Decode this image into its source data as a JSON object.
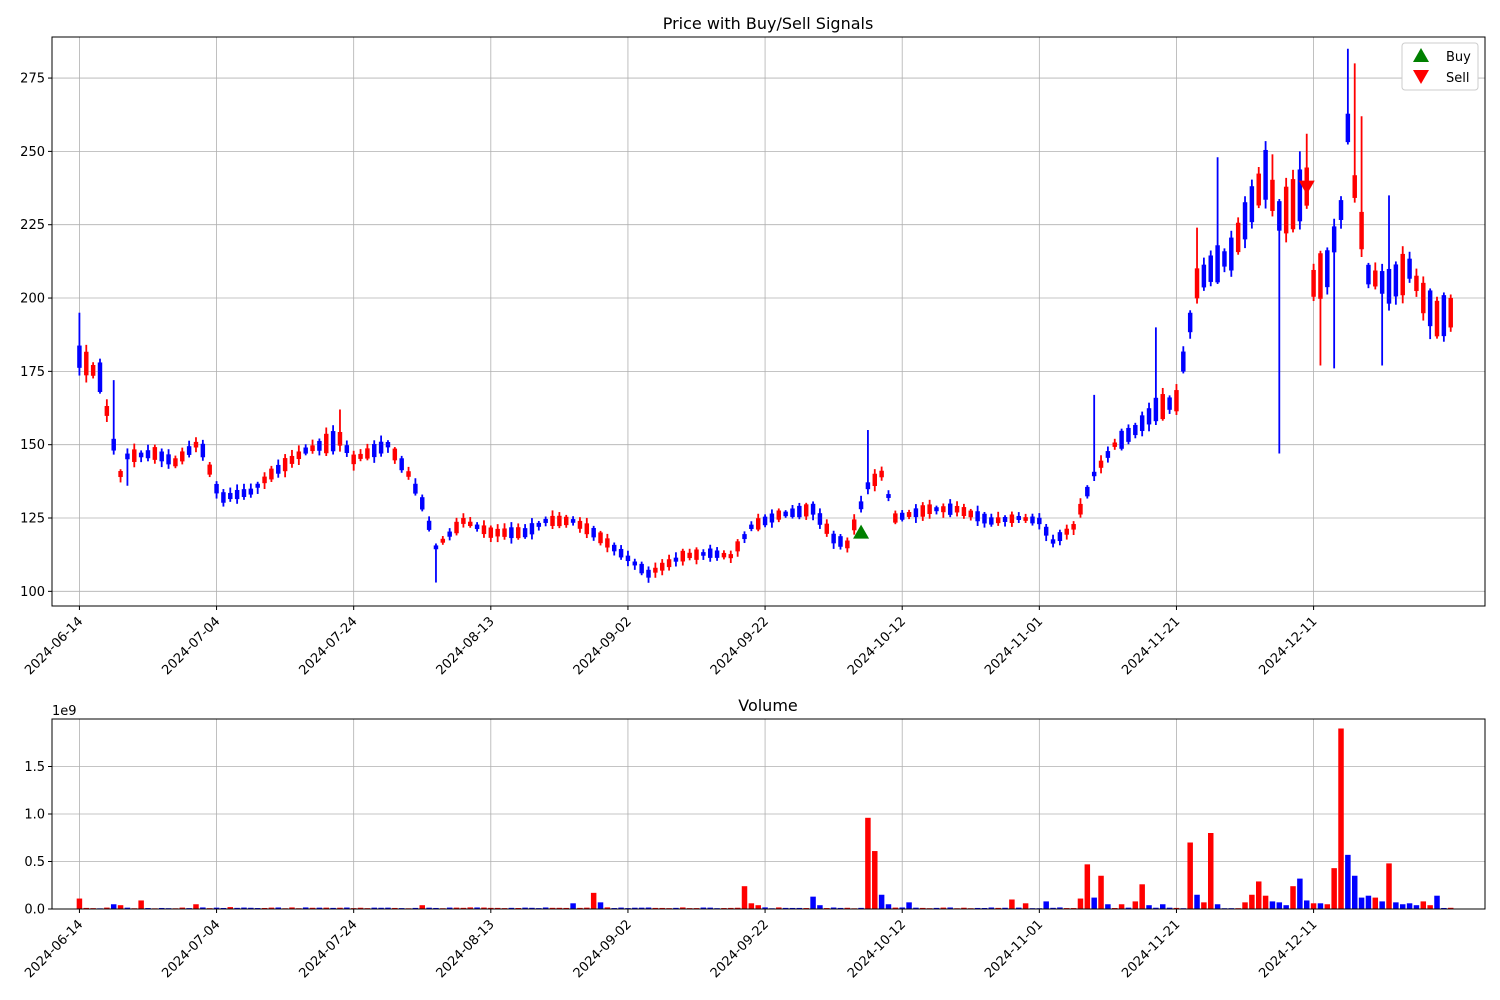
{
  "chart_data": [
    {
      "type": "candlestick",
      "title": "Price with Buy/Sell Signals",
      "xlabel": "",
      "ylabel": "",
      "x_range": [
        "2024-06-10",
        "2025-01-05"
      ],
      "ylim": [
        95,
        289
      ],
      "yticks": [
        100,
        125,
        150,
        175,
        200,
        225,
        250,
        275
      ],
      "xticks": [
        "2024-06-14",
        "2024-07-04",
        "2024-07-24",
        "2024-08-13",
        "2024-09-02",
        "2024-09-22",
        "2024-10-12",
        "2024-11-01",
        "2024-11-21",
        "2024-12-11"
      ],
      "grid": true,
      "colors": {
        "up": "#ff0000",
        "down": "#0000ff",
        "buy": "#008000",
        "sell": "#ff0000"
      },
      "legend": {
        "placement": "top-right",
        "entries": [
          {
            "label": "Buy",
            "marker": "triangle-up",
            "color": "#008000"
          },
          {
            "label": "Sell",
            "marker": "triangle-down",
            "color": "#ff0000"
          }
        ]
      },
      "signals": [
        {
          "type": "buy",
          "date": "2024-10-06",
          "price": 120
        },
        {
          "type": "sell",
          "date": "2024-12-10",
          "price": 238
        }
      ],
      "anchors": [
        [
          "2024-06-14",
          180
        ],
        [
          "2024-06-17",
          173
        ],
        [
          "2024-06-19",
          150
        ],
        [
          "2024-06-20",
          140
        ],
        [
          "2024-06-21",
          146
        ],
        [
          "2024-06-25",
          147
        ],
        [
          "2024-06-28",
          144
        ],
        [
          "2024-07-01",
          150
        ],
        [
          "2024-07-02",
          148
        ],
        [
          "2024-07-04",
          135
        ],
        [
          "2024-07-05",
          132
        ],
        [
          "2024-07-09",
          134
        ],
        [
          "2024-07-12",
          140
        ],
        [
          "2024-07-17",
          148
        ],
        [
          "2024-07-22",
          152
        ],
        [
          "2024-07-24",
          145
        ],
        [
          "2024-07-29",
          150
        ],
        [
          "2024-08-01",
          140
        ],
        [
          "2024-08-03",
          130
        ],
        [
          "2024-08-05",
          115
        ],
        [
          "2024-08-09",
          124
        ],
        [
          "2024-08-13",
          120
        ],
        [
          "2024-08-18",
          120
        ],
        [
          "2024-08-21",
          124
        ],
        [
          "2024-08-25",
          124
        ],
        [
          "2024-08-28",
          120
        ],
        [
          "2024-09-01",
          113
        ],
        [
          "2024-09-05",
          106
        ],
        [
          "2024-09-10",
          112
        ],
        [
          "2024-09-14",
          113
        ],
        [
          "2024-09-17",
          112
        ],
        [
          "2024-09-20",
          122
        ],
        [
          "2024-09-24",
          126
        ],
        [
          "2024-09-29",
          128
        ],
        [
          "2024-10-02",
          118
        ],
        [
          "2024-10-04",
          116
        ],
        [
          "2024-10-07",
          136
        ],
        [
          "2024-10-09",
          140
        ],
        [
          "2024-10-11",
          125
        ],
        [
          "2024-10-16",
          128
        ],
        [
          "2024-10-20",
          128
        ],
        [
          "2024-10-25",
          124
        ],
        [
          "2024-10-29",
          125
        ],
        [
          "2024-11-01",
          124
        ],
        [
          "2024-11-03",
          117
        ],
        [
          "2024-11-06",
          122
        ],
        [
          "2024-11-09",
          140
        ],
        [
          "2024-11-12",
          150
        ],
        [
          "2024-11-15",
          155
        ],
        [
          "2024-11-18",
          162
        ],
        [
          "2024-11-21",
          165
        ],
        [
          "2024-11-24",
          205
        ],
        [
          "2024-11-26",
          210
        ],
        [
          "2024-11-29",
          215
        ],
        [
          "2024-12-02",
          232
        ],
        [
          "2024-12-04",
          242
        ],
        [
          "2024-12-06",
          228
        ],
        [
          "2024-12-08",
          232
        ],
        [
          "2024-12-10",
          238
        ],
        [
          "2024-12-11",
          205
        ],
        [
          "2024-12-13",
          210
        ],
        [
          "2024-12-15",
          230
        ],
        [
          "2024-12-16",
          258
        ],
        [
          "2024-12-17",
          238
        ],
        [
          "2024-12-19",
          208
        ],
        [
          "2024-12-22",
          204
        ],
        [
          "2024-12-25",
          210
        ],
        [
          "2024-12-27",
          200
        ],
        [
          "2024-12-29",
          193
        ],
        [
          "2024-12-31",
          195
        ]
      ],
      "feature_highs": [
        [
          "2024-06-14",
          195
        ],
        [
          "2024-06-19",
          172
        ],
        [
          "2024-07-05",
          118
        ],
        [
          "2024-07-22",
          162
        ],
        [
          "2024-08-05",
          103
        ],
        [
          "2024-10-07",
          155
        ],
        [
          "2024-11-09",
          167
        ],
        [
          "2024-11-18",
          190
        ],
        [
          "2024-11-24",
          224
        ],
        [
          "2024-11-27",
          248
        ],
        [
          "2024-12-05",
          249
        ],
        [
          "2024-12-09",
          250
        ],
        [
          "2024-12-10",
          256
        ],
        [
          "2024-12-16",
          285
        ],
        [
          "2024-12-17",
          280
        ],
        [
          "2024-12-18",
          262
        ],
        [
          "2024-12-22",
          235
        ]
      ],
      "feature_lows": [
        [
          "2024-06-21",
          136
        ],
        [
          "2024-08-05",
          103
        ],
        [
          "2024-12-06",
          147
        ],
        [
          "2024-12-12",
          177
        ],
        [
          "2024-12-14",
          176
        ],
        [
          "2024-12-21",
          177
        ],
        [
          "2024-12-28",
          186
        ]
      ]
    },
    {
      "type": "bar",
      "title": "Volume",
      "xlabel": "",
      "ylabel": "",
      "scale_label": "1e9",
      "scale_factor": 1000000000,
      "x_range": [
        "2024-06-10",
        "2025-01-05"
      ],
      "ylim": [
        0,
        2.0
      ],
      "yticks": [
        0.0,
        0.5,
        1.0,
        1.5
      ],
      "ytick_labels": [
        "0.0",
        "0.5",
        "1.0",
        "1.5"
      ],
      "xticks": [
        "2024-06-14",
        "2024-07-04",
        "2024-07-24",
        "2024-08-13",
        "2024-09-02",
        "2024-09-22",
        "2024-10-12",
        "2024-11-01",
        "2024-11-21",
        "2024-12-11"
      ],
      "grid": true,
      "baseline": 0.012,
      "spikes": [
        [
          "2024-06-14",
          0.11,
          "up"
        ],
        [
          "2024-06-19",
          0.05,
          "down"
        ],
        [
          "2024-06-20",
          0.04,
          "up"
        ],
        [
          "2024-06-23",
          0.09,
          "up"
        ],
        [
          "2024-07-01",
          0.05,
          "up"
        ],
        [
          "2024-07-06",
          0.02,
          "up"
        ],
        [
          "2024-08-03",
          0.04,
          "up"
        ],
        [
          "2024-08-25",
          0.06,
          "down"
        ],
        [
          "2024-08-28",
          0.17,
          "up"
        ],
        [
          "2024-08-29",
          0.07,
          "down"
        ],
        [
          "2024-09-19",
          0.24,
          "up"
        ],
        [
          "2024-09-20",
          0.06,
          "up"
        ],
        [
          "2024-09-21",
          0.04,
          "up"
        ],
        [
          "2024-09-29",
          0.13,
          "down"
        ],
        [
          "2024-09-30",
          0.04,
          "down"
        ],
        [
          "2024-10-07",
          0.96,
          "up"
        ],
        [
          "2024-10-08",
          0.61,
          "up"
        ],
        [
          "2024-10-09",
          0.15,
          "down"
        ],
        [
          "2024-10-10",
          0.05,
          "down"
        ],
        [
          "2024-10-13",
          0.07,
          "down"
        ],
        [
          "2024-10-28",
          0.1,
          "up"
        ],
        [
          "2024-10-30",
          0.06,
          "up"
        ],
        [
          "2024-11-02",
          0.08,
          "down"
        ],
        [
          "2024-11-07",
          0.11,
          "up"
        ],
        [
          "2024-11-08",
          0.47,
          "up"
        ],
        [
          "2024-11-09",
          0.12,
          "down"
        ],
        [
          "2024-11-10",
          0.35,
          "up"
        ],
        [
          "2024-11-11",
          0.05,
          "down"
        ],
        [
          "2024-11-13",
          0.05,
          "up"
        ],
        [
          "2024-11-15",
          0.08,
          "up"
        ],
        [
          "2024-11-16",
          0.26,
          "up"
        ],
        [
          "2024-11-17",
          0.04,
          "down"
        ],
        [
          "2024-11-19",
          0.05,
          "down"
        ],
        [
          "2024-11-23",
          0.7,
          "up"
        ],
        [
          "2024-11-24",
          0.15,
          "down"
        ],
        [
          "2024-11-25",
          0.07,
          "up"
        ],
        [
          "2024-11-26",
          0.8,
          "up"
        ],
        [
          "2024-11-27",
          0.05,
          "down"
        ],
        [
          "2024-12-01",
          0.07,
          "up"
        ],
        [
          "2024-12-02",
          0.15,
          "up"
        ],
        [
          "2024-12-03",
          0.29,
          "up"
        ],
        [
          "2024-12-04",
          0.14,
          "up"
        ],
        [
          "2024-12-05",
          0.08,
          "down"
        ],
        [
          "2024-12-06",
          0.07,
          "down"
        ],
        [
          "2024-12-07",
          0.04,
          "down"
        ],
        [
          "2024-12-08",
          0.24,
          "up"
        ],
        [
          "2024-12-09",
          0.32,
          "down"
        ],
        [
          "2024-12-10",
          0.09,
          "down"
        ],
        [
          "2024-12-11",
          0.06,
          "up"
        ],
        [
          "2024-12-12",
          0.06,
          "down"
        ],
        [
          "2024-12-13",
          0.05,
          "up"
        ],
        [
          "2024-12-14",
          0.43,
          "up"
        ],
        [
          "2024-12-15",
          1.9,
          "up"
        ],
        [
          "2024-12-16",
          0.57,
          "down"
        ],
        [
          "2024-12-17",
          0.35,
          "down"
        ],
        [
          "2024-12-18",
          0.12,
          "down"
        ],
        [
          "2024-12-19",
          0.14,
          "down"
        ],
        [
          "2024-12-20",
          0.12,
          "up"
        ],
        [
          "2024-12-21",
          0.08,
          "down"
        ],
        [
          "2024-12-22",
          0.48,
          "up"
        ],
        [
          "2024-12-23",
          0.07,
          "down"
        ],
        [
          "2024-12-24",
          0.05,
          "down"
        ],
        [
          "2024-12-25",
          0.06,
          "down"
        ],
        [
          "2024-12-26",
          0.04,
          "down"
        ],
        [
          "2024-12-27",
          0.08,
          "up"
        ],
        [
          "2024-12-28",
          0.04,
          "up"
        ],
        [
          "2024-12-29",
          0.14,
          "down"
        ]
      ]
    }
  ]
}
